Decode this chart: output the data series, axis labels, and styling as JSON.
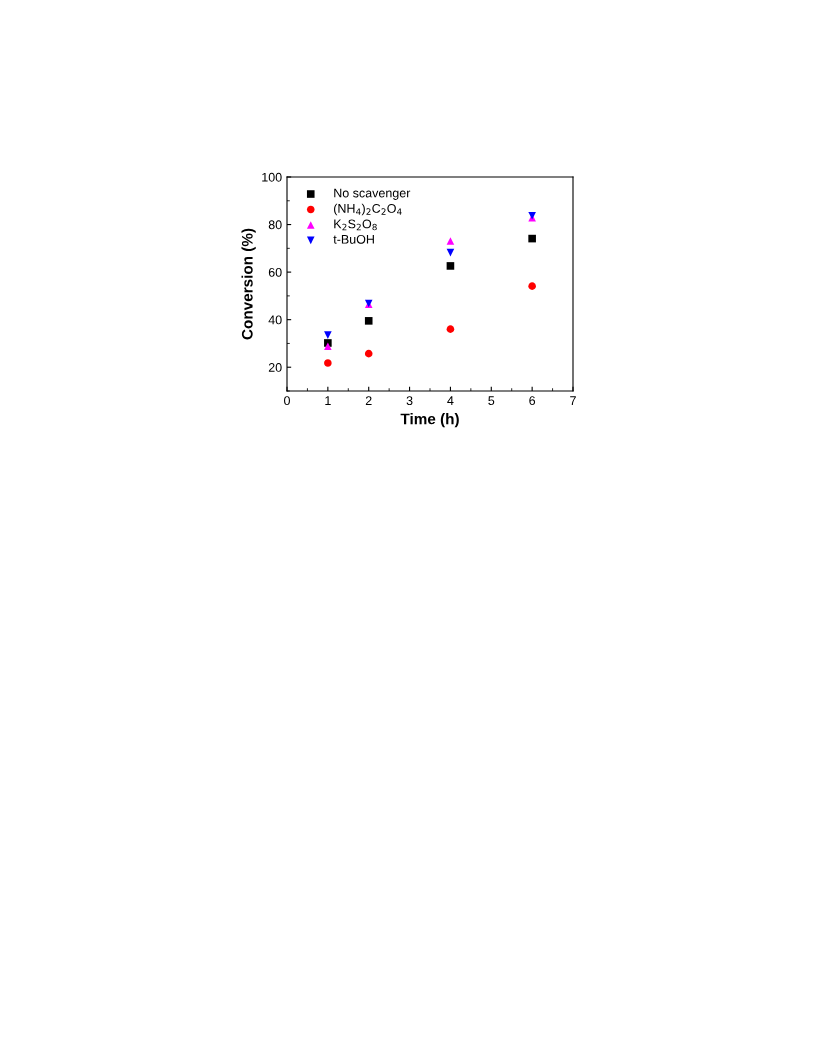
{
  "chart_data": {
    "type": "scatter",
    "xlabel": "Time (h)",
    "ylabel": "Conversion (%)",
    "x": [
      1,
      2,
      4,
      6
    ],
    "series": [
      {
        "name": "No scavenger",
        "color": "#000000",
        "marker": "square",
        "values": [
          30.2,
          39.5,
          62.6,
          74.1
        ]
      },
      {
        "name": "(NH$_{4}$)$_{2}$C$_{2}$O$_{4}$",
        "color": "#ff0000",
        "marker": "circle",
        "values": [
          21.8,
          25.7,
          36.0,
          54.1
        ]
      },
      {
        "name": "K$_{2}$S$_{2}$O$_{8}$",
        "color": "#ff00ff",
        "marker": "triangle",
        "values": [
          28.8,
          46.5,
          73.1,
          82.9
        ]
      },
      {
        "name": "t-BuOH",
        "color": "#0000ff",
        "marker": "triangle_down",
        "values": [
          33.5,
          46.8,
          68.2,
          83.7
        ]
      }
    ],
    "xlim": [
      0,
      7
    ],
    "xticks": [
      0,
      1,
      2,
      3,
      4,
      5,
      6,
      7
    ],
    "ylim": [
      10,
      100
    ],
    "yticks": [
      20,
      40,
      60,
      80,
      100
    ],
    "grid": false,
    "legend": "top left"
  }
}
